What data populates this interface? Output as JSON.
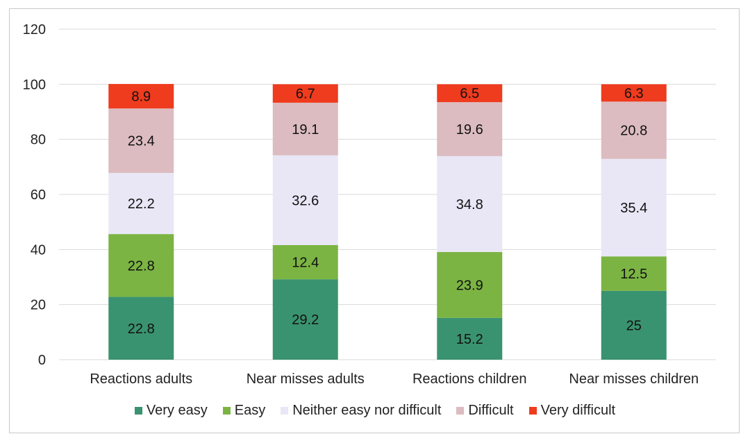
{
  "chart_data": {
    "type": "bar",
    "stacked": true,
    "categories": [
      "Reactions adults",
      "Near misses adults",
      "Reactions children",
      "Near misses children"
    ],
    "series": [
      {
        "name": "Very easy",
        "color": "#3a9370",
        "values": [
          22.8,
          29.2,
          15.2,
          25
        ]
      },
      {
        "name": "Easy",
        "color": "#7bb443",
        "values": [
          22.8,
          12.4,
          23.9,
          12.5
        ]
      },
      {
        "name": "Neither easy nor difficult",
        "color": "#e9e7f6",
        "values": [
          22.2,
          32.6,
          34.8,
          35.4
        ]
      },
      {
        "name": "Difficult",
        "color": "#dcbcc0",
        "values": [
          23.4,
          19.1,
          19.6,
          20.8
        ]
      },
      {
        "name": "Very difficult",
        "color": "#ef3b1e",
        "values": [
          8.9,
          6.7,
          6.5,
          6.3
        ]
      }
    ],
    "title": "",
    "xlabel": "",
    "ylabel": "",
    "ylim": [
      0,
      120
    ],
    "yticks": [
      0,
      20,
      40,
      60,
      80,
      100,
      120
    ],
    "grid": true,
    "legend_position": "bottom"
  }
}
